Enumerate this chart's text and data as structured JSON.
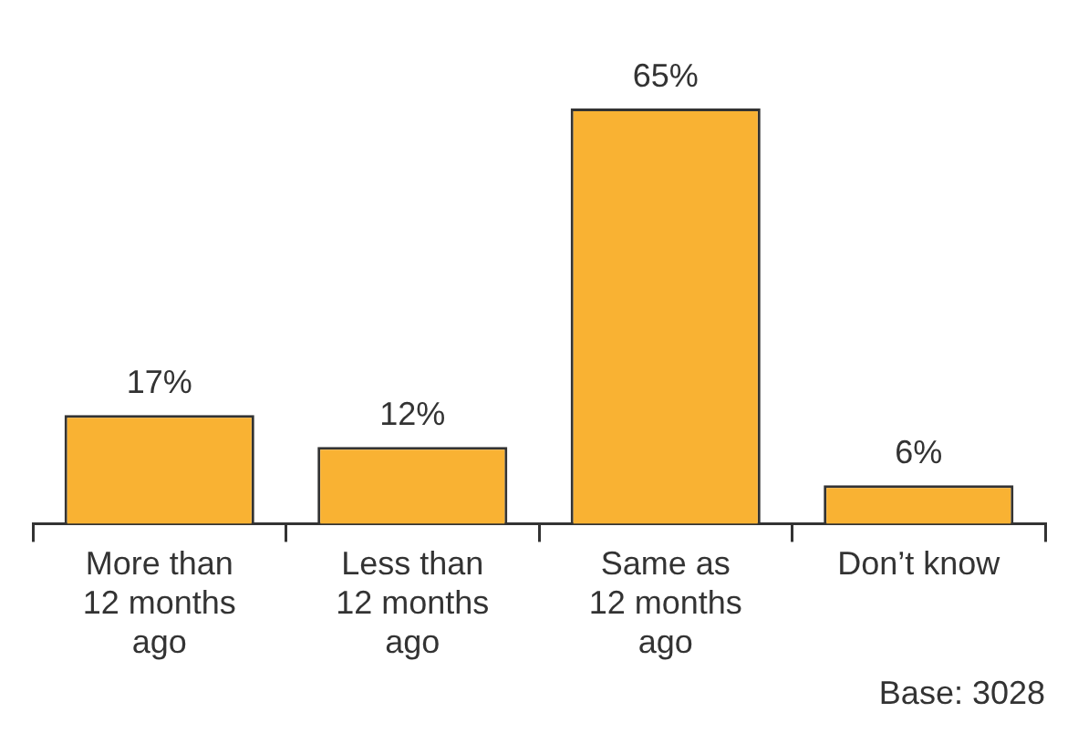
{
  "chart_data": {
    "type": "bar",
    "categories": [
      "More than 12 months ago",
      "Less than 12 months ago",
      "Same as 12 months ago",
      "Don’t know"
    ],
    "values": [
      17,
      12,
      65,
      6
    ],
    "value_labels": [
      "17%",
      "12%",
      "65%",
      "6%"
    ],
    "color": "#f9b233",
    "grid": false,
    "legend": false,
    "annotations": [
      "Base: 3028"
    ]
  }
}
